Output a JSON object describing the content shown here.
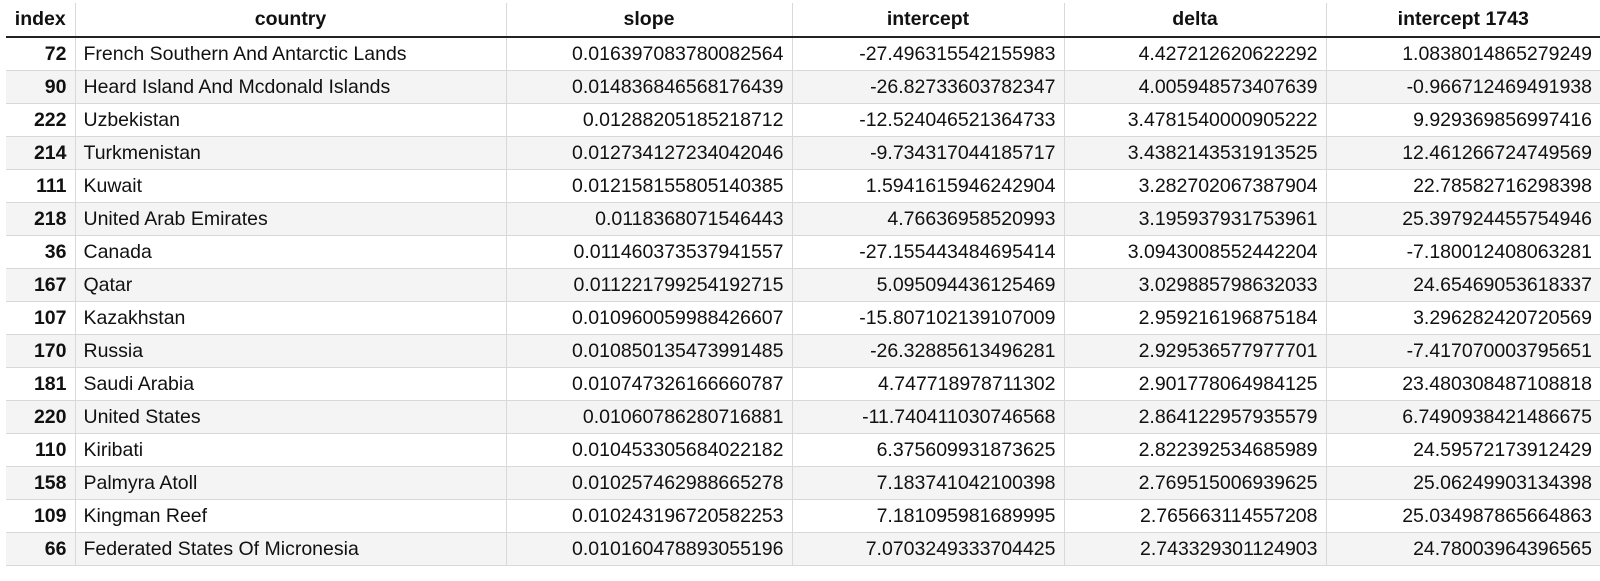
{
  "columns": [
    "index",
    "country",
    "slope",
    "intercept",
    "delta",
    "intercept 1743"
  ],
  "rows": [
    [
      "72",
      "French Southern And Antarctic Lands",
      "0.016397083780082564",
      "-27.496315542155983",
      "4.427212620622292",
      "1.0838014865279249"
    ],
    [
      "90",
      "Heard Island And Mcdonald Islands",
      "0.014836846568176439",
      "-26.82733603782347",
      "4.005948573407639",
      "-0.966712469491938"
    ],
    [
      "222",
      "Uzbekistan",
      "0.01288205185218712",
      "-12.524046521364733",
      "3.4781540000905222",
      "9.929369856997416"
    ],
    [
      "214",
      "Turkmenistan",
      "0.012734127234042046",
      "-9.734317044185717",
      "3.4382143531913525",
      "12.461266724749569"
    ],
    [
      "111",
      "Kuwait",
      "0.012158155805140385",
      "1.5941615946242904",
      "3.282702067387904",
      "22.78582716298398"
    ],
    [
      "218",
      "United Arab Emirates",
      "0.0118368071546443",
      "4.76636958520993",
      "3.195937931753961",
      "25.397924455754946"
    ],
    [
      "36",
      "Canada",
      "0.011460373537941557",
      "-27.155443484695414",
      "3.0943008552442204",
      "-7.180012408063281"
    ],
    [
      "167",
      "Qatar",
      "0.011221799254192715",
      "5.095094436125469",
      "3.029885798632033",
      "24.65469053618337"
    ],
    [
      "107",
      "Kazakhstan",
      "0.010960059988426607",
      "-15.807102139107009",
      "2.959216196875184",
      "3.296282420720569"
    ],
    [
      "170",
      "Russia",
      "0.010850135473991485",
      "-26.32885613496281",
      "2.929536577977701",
      "-7.417070003795651"
    ],
    [
      "181",
      "Saudi Arabia",
      "0.010747326166660787",
      "4.747718978711302",
      "2.901778064984125",
      "23.480308487108818"
    ],
    [
      "220",
      "United States",
      "0.01060786280716881",
      "-11.740411030746568",
      "2.864122957935579",
      "6.7490938421486675"
    ],
    [
      "110",
      "Kiribati",
      "0.010453305684022182",
      "6.375609931873625",
      "2.822392534685989",
      "24.59572173912429"
    ],
    [
      "158",
      "Palmyra Atoll",
      "0.010257462988665278",
      "7.183741042100398",
      "2.769515006939625",
      "25.06249903134398"
    ],
    [
      "109",
      "Kingman Reef",
      "0.010243196720582253",
      "7.181095981689995",
      "2.765663114557208",
      "25.034987865664863"
    ],
    [
      "66",
      "Federated States Of Micronesia",
      "0.010160478893055196",
      "7.0703249333704425",
      "2.743329301124903",
      "24.78003964396565"
    ]
  ]
}
